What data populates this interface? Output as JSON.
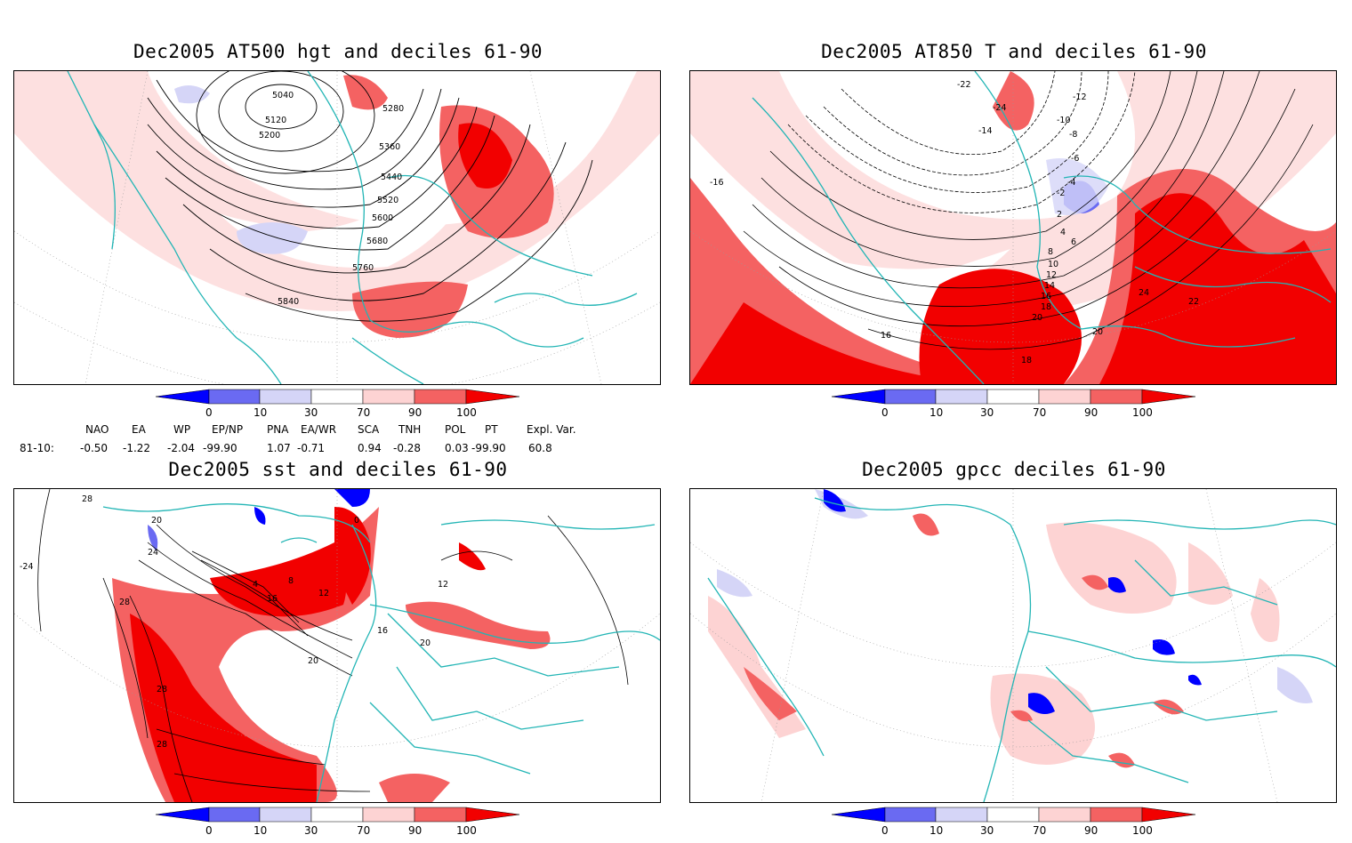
{
  "panels": [
    {
      "title": "Dec2005 AT500 hgt and deciles 61-90",
      "contour_labels": [
        "5040",
        "5120",
        "5200",
        "5280",
        "5360",
        "5440",
        "5520",
        "5600",
        "5680",
        "5760",
        "5840"
      ]
    },
    {
      "title": "Dec2005 AT850 T and deciles 61-90",
      "contour_labels": [
        "-22",
        "-24",
        "-12",
        "-10",
        "-8",
        "-6",
        "-14",
        "-4",
        "-2",
        "2",
        "4",
        "6",
        "8",
        "10",
        "12",
        "14",
        "16",
        "18",
        "20",
        "22",
        "24",
        "-16",
        "16",
        "20",
        "18"
      ]
    },
    {
      "title": "Dec2005 sst and deciles 61-90",
      "contour_labels": [
        "28",
        "20",
        "24",
        "-24",
        "0",
        "4",
        "8",
        "12",
        "16",
        "20",
        "28",
        "28",
        "28",
        "12",
        "16",
        "20"
      ]
    },
    {
      "title": "Dec2005 gpcc deciles 61-90",
      "contour_labels": []
    }
  ],
  "colorbar": {
    "ticks": [
      "0",
      "10",
      "30",
      "70",
      "90",
      "100"
    ],
    "colors": {
      "deep_blue": "#0000ff",
      "mid_blue": "#6a6af2",
      "light_blue": "#d5d5f7",
      "white": "#ffffff",
      "light_red": "#fdd3d3",
      "mid_red": "#f46262",
      "deep_red": "#f20000"
    }
  },
  "indices": {
    "row_label": "81-10:",
    "headers": [
      "NAO",
      "EA",
      "WP",
      "EP/NP",
      "PNA",
      "EA/WR",
      "SCA",
      "TNH",
      "POL",
      "PT",
      "Expl. Var."
    ],
    "values": [
      "-0.50",
      "-1.22",
      "-2.04",
      "-99.90",
      "1.07",
      "-0.71",
      "0.94",
      "-0.28",
      "0.03",
      "-99.90",
      "60.8"
    ]
  },
  "colors": {
    "coast": "#22b5b5",
    "frame": "#000000",
    "contour": "#000000",
    "grid": "#999999"
  }
}
